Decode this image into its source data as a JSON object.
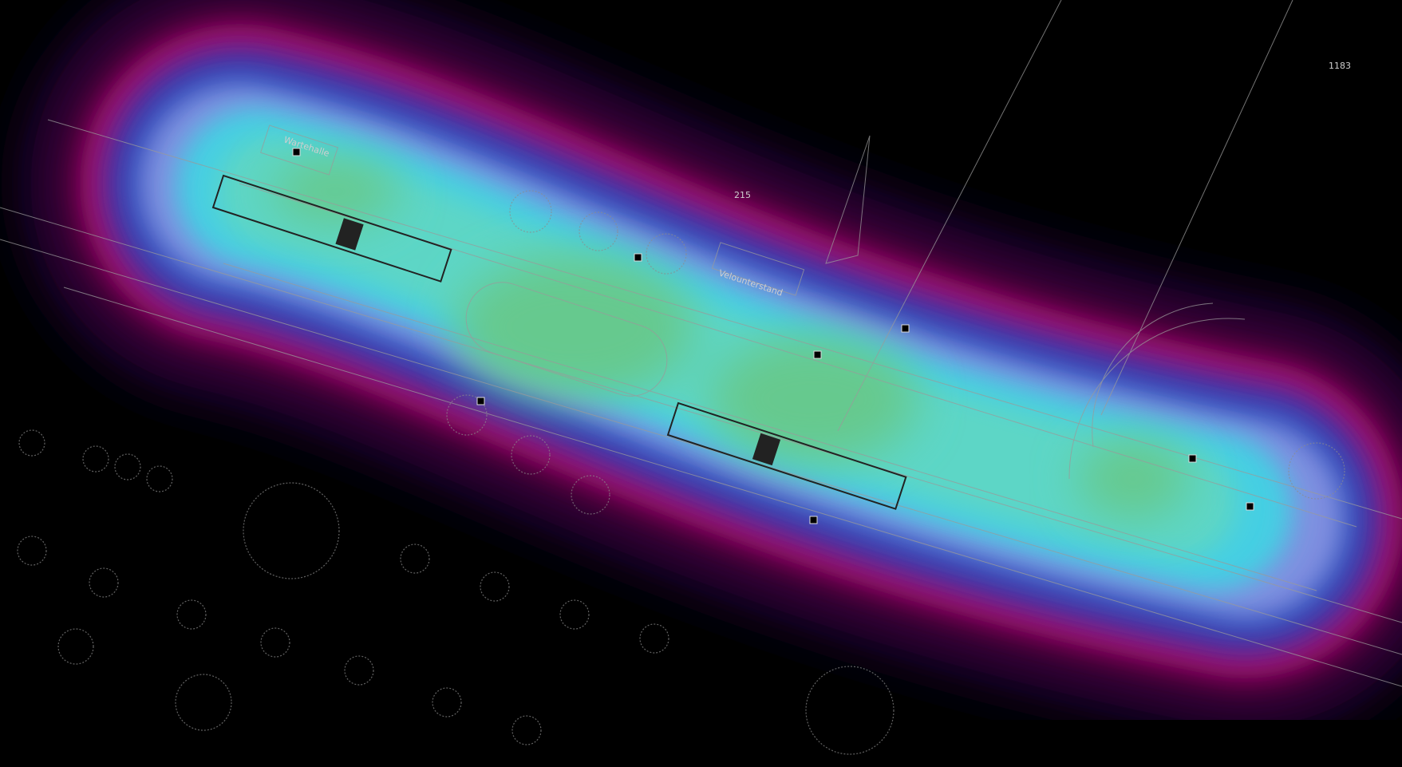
{
  "labels": {
    "shelter": "Wartehalle",
    "bike_shelter": "Velounterstand",
    "parcel_top": "215",
    "parcel_right": "1183"
  }
}
